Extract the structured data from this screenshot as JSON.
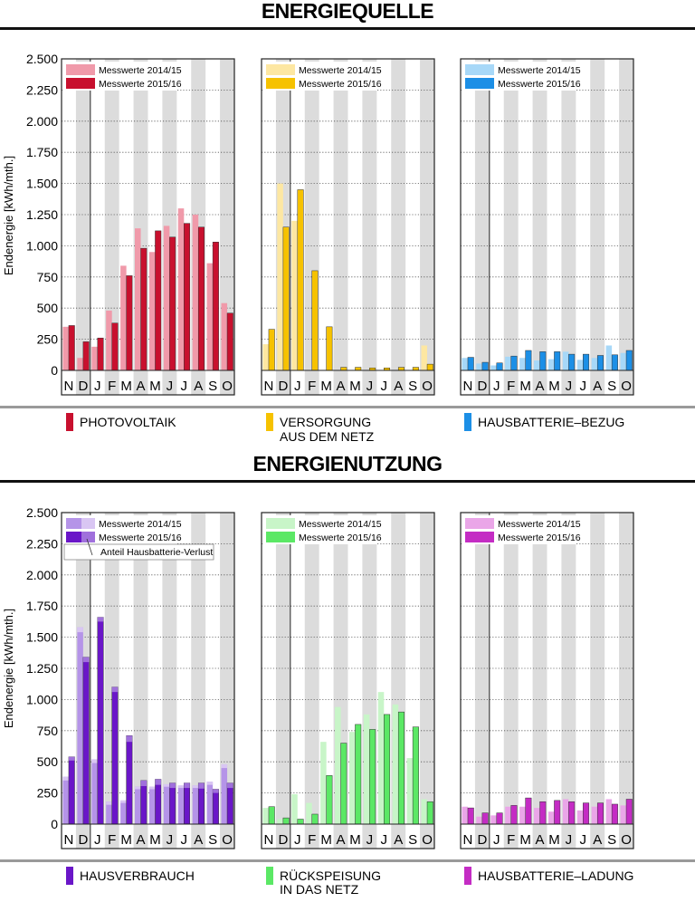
{
  "sections": [
    {
      "title": "ENERGIEQUELLE",
      "ylabel": "Endenergie [kWh/mth.]",
      "ylim": [
        0,
        2500
      ],
      "yticks": [
        0,
        250,
        500,
        750,
        1000,
        1250,
        1500,
        1750,
        2000,
        2250,
        2500
      ],
      "ytick_labels": [
        "0",
        "250",
        "500",
        "750",
        "1.000",
        "1.250",
        "1.500",
        "1.750",
        "2.000",
        "2.250",
        "2.500"
      ]
    },
    {
      "title": "ENERGIENUTZUNG",
      "ylabel": "Endenergie [kWh/mth.]",
      "ylim": [
        0,
        2500
      ],
      "yticks": [
        0,
        250,
        500,
        750,
        1000,
        1250,
        1500,
        1750,
        2000,
        2250,
        2500
      ],
      "ytick_labels": [
        "0",
        "250",
        "500",
        "750",
        "1.000",
        "1.250",
        "1.500",
        "1.750",
        "2.000",
        "2.250",
        "2.500"
      ]
    }
  ],
  "chart_data": [
    {
      "type": "bar",
      "id": "photovoltaik",
      "section": 0,
      "panel": 0,
      "categories": [
        "N",
        "D",
        "J",
        "F",
        "M",
        "A",
        "M",
        "J",
        "J",
        "A",
        "S",
        "O"
      ],
      "series": [
        {
          "name": "Messwerte 2014/15",
          "values": [
            350,
            100,
            190,
            480,
            840,
            1140,
            950,
            1160,
            1300,
            1250,
            860,
            540
          ]
        },
        {
          "name": "Messwerte 2015/16",
          "values": [
            360,
            230,
            260,
            380,
            760,
            980,
            1120,
            1070,
            1180,
            1150,
            1030,
            460
          ]
        }
      ],
      "colors": [
        "#f09aaa",
        "#c8102e"
      ],
      "legend_label": "PHOTOVOLTAIK"
    },
    {
      "type": "bar",
      "id": "versorgung",
      "section": 0,
      "panel": 1,
      "categories": [
        "N",
        "D",
        "J",
        "F",
        "M",
        "A",
        "M",
        "J",
        "J",
        "A",
        "S",
        "O"
      ],
      "series": [
        {
          "name": "Messwerte 2014/15",
          "values": [
            210,
            1500,
            1200,
            0,
            0,
            0,
            0,
            0,
            0,
            0,
            0,
            200
          ]
        },
        {
          "name": "Messwerte 2015/16",
          "values": [
            330,
            1150,
            1450,
            800,
            350,
            25,
            25,
            20,
            20,
            25,
            25,
            50
          ]
        }
      ],
      "colors": [
        "#fde7a2",
        "#f6c200"
      ],
      "legend_label": "VERSORGUNG",
      "legend_label2": "AUS DEM NETZ"
    },
    {
      "type": "bar",
      "id": "hausbatterie-bezug",
      "section": 0,
      "panel": 2,
      "categories": [
        "N",
        "D",
        "J",
        "F",
        "M",
        "A",
        "M",
        "J",
        "J",
        "A",
        "S",
        "O"
      ],
      "series": [
        {
          "name": "Messwerte 2014/15",
          "values": [
            100,
            55,
            40,
            110,
            100,
            80,
            90,
            150,
            85,
            100,
            200,
            140
          ]
        },
        {
          "name": "Messwerte 2015/16",
          "values": [
            105,
            65,
            60,
            115,
            160,
            150,
            150,
            130,
            130,
            120,
            125,
            160
          ]
        }
      ],
      "colors": [
        "#a7d8f8",
        "#1c8fe6"
      ],
      "legend_label": "HAUSBATTERIE–BEZUG"
    },
    {
      "type": "bar",
      "id": "hausverbrauch",
      "section": 1,
      "panel": 0,
      "categories": [
        "N",
        "D",
        "J",
        "F",
        "M",
        "A",
        "M",
        "J",
        "J",
        "A",
        "S",
        "O"
      ],
      "series": [
        {
          "name": "Messwerte 2014/15",
          "values": [
            380,
            1580,
            520,
            180,
            190,
            300,
            300,
            320,
            310,
            310,
            340,
            480
          ]
        },
        {
          "name": "Messwerte 2015/16",
          "values": [
            540,
            1340,
            1660,
            1100,
            710,
            350,
            360,
            330,
            330,
            330,
            280,
            330
          ]
        }
      ],
      "loss": [
        {
          "name": "Anteil Hausbatterie-Verlust 2014/15",
          "values": [
            30,
            40,
            30,
            25,
            20,
            20,
            20,
            20,
            20,
            20,
            25,
            30
          ]
        },
        {
          "name": "Anteil Hausbatterie-Verlust 2015/16",
          "values": [
            30,
            40,
            35,
            40,
            50,
            45,
            45,
            40,
            40,
            45,
            30,
            40
          ]
        }
      ],
      "colors": [
        "#b594e8",
        "#6a16c8"
      ],
      "loss_colors": [
        "#d9c6f3",
        "#a070dc"
      ],
      "legend_label": "HAUSVERBRAUCH",
      "annotation": "Anteil Hausbatterie-Verlust"
    },
    {
      "type": "bar",
      "id": "rueckspeisung",
      "section": 1,
      "panel": 1,
      "categories": [
        "N",
        "D",
        "J",
        "F",
        "M",
        "A",
        "M",
        "J",
        "J",
        "A",
        "S",
        "O"
      ],
      "series": [
        {
          "name": "Messwerte 2014/15",
          "values": [
            130,
            40,
            240,
            170,
            660,
            940,
            740,
            880,
            1060,
            960,
            530,
            200
          ]
        },
        {
          "name": "Messwerte 2015/16",
          "values": [
            140,
            50,
            40,
            80,
            390,
            650,
            800,
            760,
            880,
            900,
            780,
            180
          ]
        }
      ],
      "colors": [
        "#c8f5c8",
        "#5be865"
      ],
      "legend_label": "RÜCKSPEISUNG",
      "legend_label2": "IN DAS NETZ"
    },
    {
      "type": "bar",
      "id": "hausbatterie-ladung",
      "section": 1,
      "panel": 2,
      "categories": [
        "N",
        "D",
        "J",
        "F",
        "M",
        "A",
        "M",
        "J",
        "J",
        "A",
        "S",
        "O"
      ],
      "series": [
        {
          "name": "Messwerte 2014/15",
          "values": [
            140,
            60,
            70,
            140,
            140,
            130,
            100,
            200,
            110,
            140,
            200,
            150
          ]
        },
        {
          "name": "Messwerte 2015/16",
          "values": [
            130,
            90,
            90,
            150,
            210,
            180,
            190,
            180,
            170,
            170,
            160,
            200
          ]
        }
      ],
      "colors": [
        "#eaa6e8",
        "#c42cc4"
      ],
      "legend_label": "HAUSBATTERIE–LADUNG"
    }
  ]
}
